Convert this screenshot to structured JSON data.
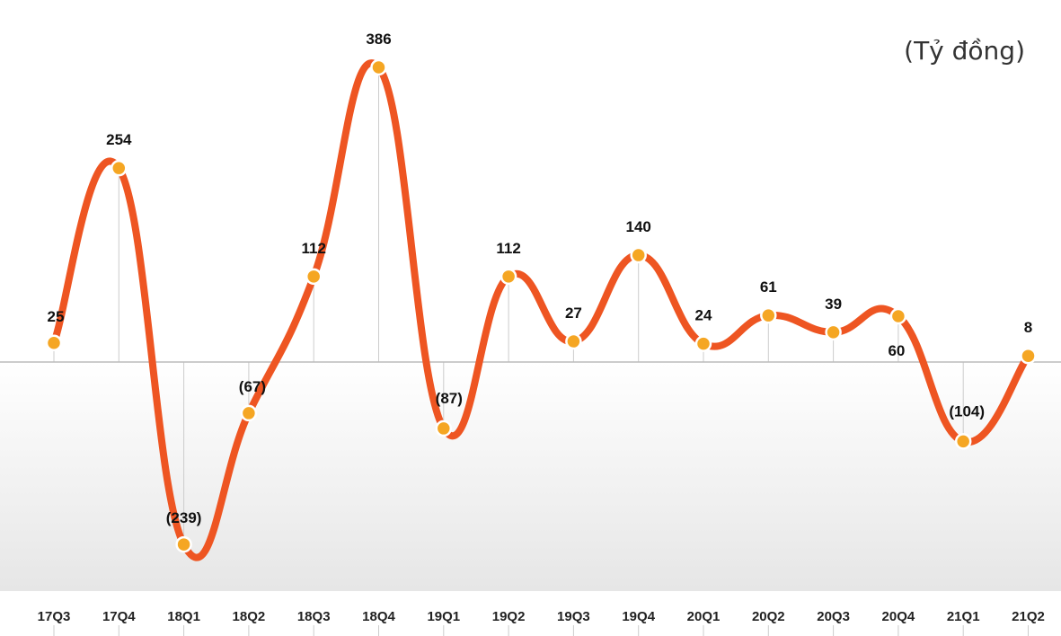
{
  "unit": "(Tỷ đồng)",
  "colors": {
    "line": "#ee5522",
    "marker": "#f5a623",
    "marker_stroke": "#ffffff",
    "axis": "#bbbbbb",
    "vline": "#cccccc"
  },
  "chart_data": {
    "type": "line",
    "title": "",
    "unit": "(Tỷ đồng)",
    "categories": [
      "17Q3",
      "17Q4",
      "18Q1",
      "18Q2",
      "18Q3",
      "18Q4",
      "19Q1",
      "19Q2",
      "19Q3",
      "19Q4",
      "20Q1",
      "20Q2",
      "20Q3",
      "20Q4",
      "21Q1",
      "21Q2"
    ],
    "values": [
      25,
      254,
      -239,
      -67,
      112,
      386,
      -87,
      112,
      27,
      140,
      24,
      61,
      39,
      60,
      -104,
      8
    ],
    "labels": [
      "25",
      "254",
      "(239)",
      "(67)",
      "112",
      "386",
      "(87)",
      "112",
      "27",
      "140",
      "24",
      "61",
      "39",
      "60",
      "(104)",
      "8"
    ],
    "ylim": [
      -305,
      400
    ],
    "grid": false,
    "legend": "none"
  }
}
